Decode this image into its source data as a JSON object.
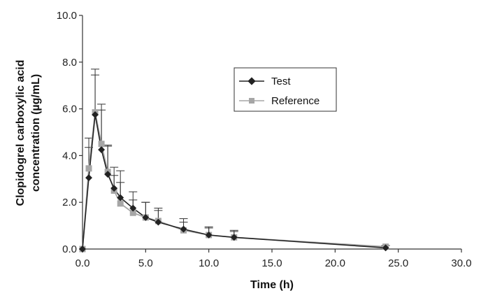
{
  "chart_data": {
    "type": "line",
    "title": "",
    "xlabel": "Time (h)",
    "ylabel_lines": [
      "Clopidogrel carboxylic acid",
      "concentration (µg/mL)"
    ],
    "xlim": [
      0,
      30
    ],
    "ylim": [
      0,
      10
    ],
    "x_ticks": [
      "0.0",
      "5.0",
      "10.0",
      "15.0",
      "20.0",
      "25.0",
      "30.0"
    ],
    "y_ticks": [
      "0.0",
      "2.0",
      "4.0",
      "6.0",
      "8.0",
      "10.0"
    ],
    "grid": false,
    "legend_position": "upper-center",
    "series": [
      {
        "name": "Test",
        "marker": "diamond",
        "color": "#222222",
        "x": [
          0,
          0.5,
          1.0,
          1.5,
          2.0,
          2.5,
          3.0,
          4.0,
          5.0,
          6.0,
          8.0,
          10.0,
          12.0,
          24.0
        ],
        "values": [
          0.0,
          3.05,
          5.75,
          4.25,
          3.2,
          2.6,
          2.2,
          1.75,
          1.35,
          1.15,
          0.85,
          0.6,
          0.5,
          0.05
        ],
        "error": [
          0,
          1.3,
          1.95,
          1.95,
          1.25,
          0.9,
          1.15,
          0.7,
          0.65,
          0.6,
          0.45,
          0.35,
          0.3,
          0.1
        ]
      },
      {
        "name": "Reference",
        "marker": "square",
        "color": "#a6a6a6",
        "x": [
          0,
          0.5,
          1.0,
          1.5,
          2.0,
          2.5,
          3.0,
          4.0,
          5.0,
          6.0,
          8.0,
          10.0,
          12.0,
          24.0
        ],
        "values": [
          0.0,
          3.45,
          5.85,
          4.5,
          3.3,
          2.5,
          1.95,
          1.55,
          1.35,
          1.2,
          0.8,
          0.6,
          0.5,
          0.1
        ],
        "error": [
          0,
          1.3,
          1.6,
          1.45,
          1.1,
          0.65,
          0.9,
          0.55,
          0.65,
          0.45,
          0.35,
          0.3,
          0.25,
          0.05
        ]
      }
    ]
  }
}
